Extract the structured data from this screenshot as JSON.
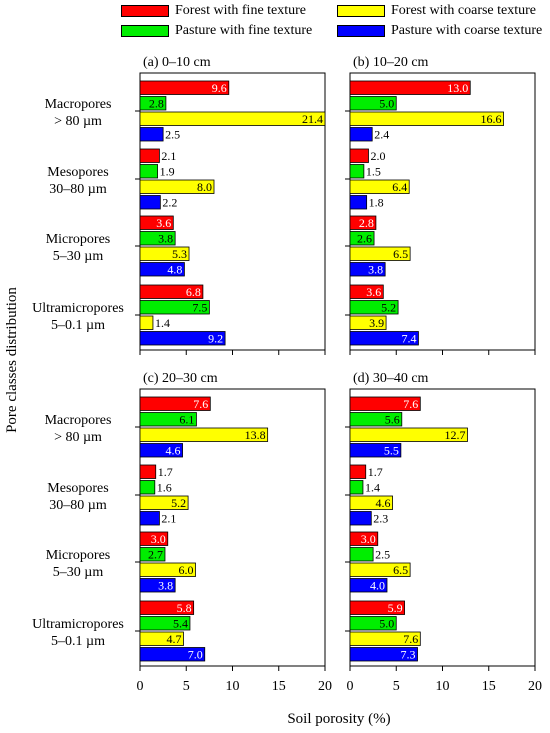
{
  "legend": [
    {
      "key": "forest_fine",
      "label": "Forest with fine texture",
      "color": "#ff0000"
    },
    {
      "key": "forest_coarse",
      "label": "Forest with coarse texture",
      "color": "#ffff00"
    },
    {
      "key": "pasture_fine",
      "label": "Pasture with fine texture",
      "color": "#00ee00"
    },
    {
      "key": "pasture_coarse",
      "label": "Pasture with coarse texture",
      "color": "#0000ff"
    }
  ],
  "labels": {
    "ylabel": "Pore classes distribution",
    "xlabel": "Soil porosity (%)"
  },
  "chart_data": {
    "type": "bar",
    "orientation": "horizontal",
    "categories": [
      "Macropores\n> 80 µm",
      "Mesopores\n30–80 µm",
      "Micropores\n5–30 µm",
      "Ultramicropores\n5–0.1 µm"
    ],
    "series_order": [
      "Forest with fine texture",
      "Pasture with fine texture",
      "Forest with coarse texture",
      "Pasture with coarse texture"
    ],
    "colors": [
      "#ff0000",
      "#00ee00",
      "#ffff00",
      "#0000ff"
    ],
    "xlabel": "Soil porosity (%)",
    "ylabel": "Pore classes distribution",
    "xlim": [
      0,
      20
    ],
    "xticks": [
      0,
      5,
      10,
      15,
      20
    ],
    "legend_position": "top",
    "grid": false,
    "panels": [
      {
        "title": "(a) 0–10 cm",
        "values": [
          [
            9.6,
            2.8,
            21.4,
            2.5
          ],
          [
            2.1,
            1.9,
            8.0,
            2.2
          ],
          [
            3.6,
            3.8,
            5.3,
            4.8
          ],
          [
            6.8,
            7.5,
            1.4,
            9.2
          ]
        ]
      },
      {
        "title": "(b) 10–20 cm",
        "values": [
          [
            13.0,
            5.0,
            16.6,
            2.4
          ],
          [
            2.0,
            1.5,
            6.4,
            1.8
          ],
          [
            2.8,
            2.6,
            6.5,
            3.8
          ],
          [
            3.6,
            5.2,
            3.9,
            7.4
          ]
        ]
      },
      {
        "title": "(c) 20–30 cm",
        "values": [
          [
            7.6,
            6.1,
            13.8,
            4.6
          ],
          [
            1.7,
            1.6,
            5.2,
            2.1
          ],
          [
            3.0,
            2.7,
            6.0,
            3.8
          ],
          [
            5.8,
            5.4,
            4.7,
            7.0
          ]
        ]
      },
      {
        "title": "(d) 30–40 cm",
        "values": [
          [
            7.6,
            5.6,
            12.7,
            5.5
          ],
          [
            1.7,
            1.4,
            4.6,
            2.3
          ],
          [
            3.0,
            2.5,
            6.5,
            4.0
          ],
          [
            5.9,
            5.0,
            7.6,
            7.3
          ]
        ]
      }
    ]
  }
}
